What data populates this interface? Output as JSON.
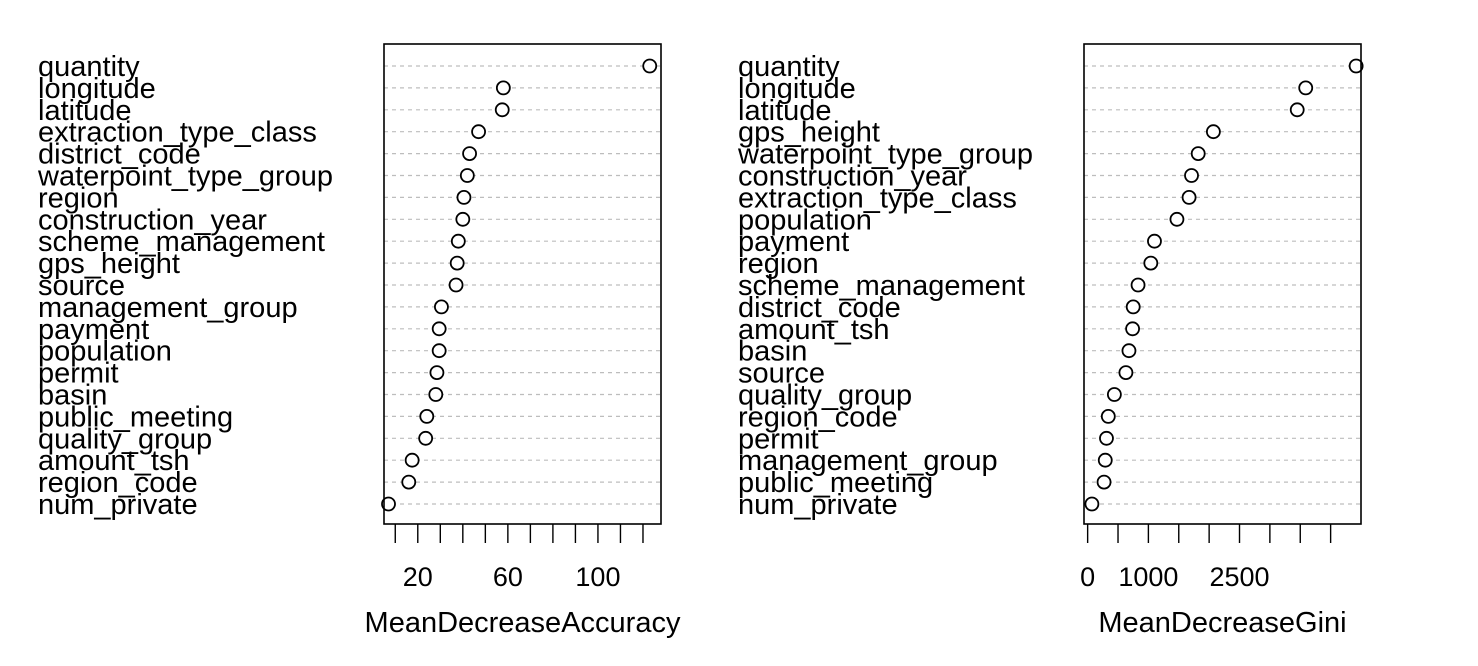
{
  "chart_data": [
    {
      "type": "scatter",
      "subtype": "dotchart",
      "xlabel": "MeanDecreaseAccuracy",
      "ylabel": "",
      "title": "",
      "xlim": [
        5,
        128
      ],
      "xticks": [
        10,
        20,
        30,
        40,
        50,
        60,
        70,
        80,
        90,
        100,
        110,
        120
      ],
      "xtick_labels": {
        "20": "20",
        "60": "60",
        "100": "100"
      },
      "grid": true,
      "categories": [
        "quantity",
        "longitude",
        "latitude",
        "extraction_type_class",
        "district_code",
        "waterpoint_type_group",
        "region",
        "construction_year",
        "scheme_management",
        "gps_height",
        "source",
        "management_group",
        "payment",
        "population",
        "permit",
        "basin",
        "public_meeting",
        "quality_group",
        "amount_tsh",
        "region_code",
        "num_private"
      ],
      "values": [
        123,
        58,
        57.5,
        47,
        43,
        42,
        40.5,
        40,
        38,
        37.5,
        37,
        30.5,
        29.5,
        29.5,
        28.5,
        28,
        24,
        23.5,
        17.5,
        16,
        7
      ]
    },
    {
      "type": "scatter",
      "subtype": "dotchart",
      "xlabel": "MeanDecreaseGini",
      "ylabel": "",
      "title": "",
      "xlim": [
        -60,
        4500
      ],
      "xticks": [
        0,
        500,
        1000,
        1500,
        2000,
        2500,
        3000,
        3500,
        4000
      ],
      "xtick_labels": {
        "0": "0",
        "1000": "1000",
        "2500": "2500"
      },
      "grid": true,
      "categories": [
        "quantity",
        "longitude",
        "latitude",
        "gps_height",
        "waterpoint_type_group",
        "construction_year",
        "extraction_type_class",
        "population",
        "payment",
        "region",
        "scheme_management",
        "district_code",
        "amount_tsh",
        "basin",
        "source",
        "quality_group",
        "region_code",
        "permit",
        "management_group",
        "public_meeting",
        "num_private"
      ],
      "values": [
        4420,
        3590,
        3450,
        2070,
        1820,
        1710,
        1670,
        1470,
        1100,
        1040,
        830,
        750,
        740,
        680,
        630,
        440,
        340,
        310,
        290,
        270,
        70
      ]
    }
  ]
}
